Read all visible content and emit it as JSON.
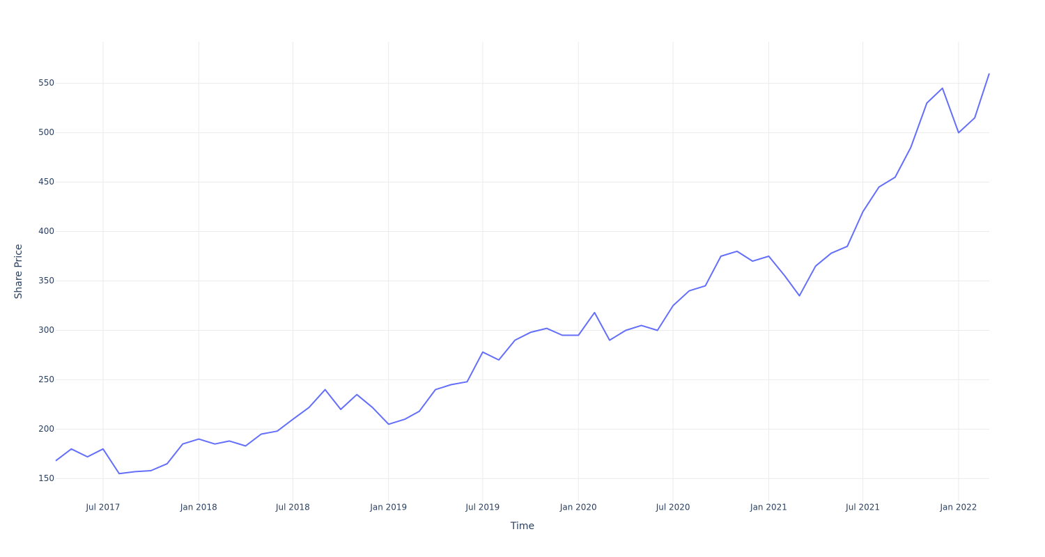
{
  "chart_data": {
    "type": "line",
    "x_title": "Time",
    "y_title": "Share Price",
    "x": [
      "2017-04",
      "2017-05",
      "2017-06",
      "2017-07",
      "2017-08",
      "2017-09",
      "2017-10",
      "2017-11",
      "2017-12",
      "2018-01",
      "2018-02",
      "2018-03",
      "2018-04",
      "2018-05",
      "2018-06",
      "2018-07",
      "2018-08",
      "2018-09",
      "2018-10",
      "2018-11",
      "2018-12",
      "2019-01",
      "2019-02",
      "2019-03",
      "2019-04",
      "2019-05",
      "2019-06",
      "2019-07",
      "2019-08",
      "2019-09",
      "2019-10",
      "2019-11",
      "2019-12",
      "2020-01",
      "2020-02",
      "2020-03",
      "2020-04",
      "2020-05",
      "2020-06",
      "2020-07",
      "2020-08",
      "2020-09",
      "2020-10",
      "2020-11",
      "2020-12",
      "2021-01",
      "2021-02",
      "2021-03",
      "2021-04",
      "2021-05",
      "2021-06",
      "2021-07",
      "2021-08",
      "2021-09",
      "2021-10",
      "2021-11",
      "2021-12",
      "2022-01",
      "2022-02",
      "2022-03"
    ],
    "series": [
      {
        "name": "Share Price",
        "color": "#636efa",
        "values": [
          168,
          180,
          172,
          180,
          155,
          157,
          158,
          165,
          185,
          190,
          185,
          188,
          183,
          195,
          198,
          210,
          222,
          240,
          220,
          235,
          222,
          205,
          210,
          218,
          240,
          245,
          248,
          278,
          270,
          290,
          298,
          302,
          295,
          295,
          318,
          290,
          300,
          305,
          300,
          325,
          340,
          345,
          375,
          380,
          370,
          375,
          355,
          335,
          365,
          378,
          385,
          420,
          445,
          455,
          485,
          530,
          545,
          500,
          515,
          560
        ]
      }
    ],
    "xlim": [
      "2017-04",
      "2022-03"
    ],
    "xticks": [
      {
        "value": "2017-07",
        "label": "Jul 2017"
      },
      {
        "value": "2018-01",
        "label": "Jan 2018"
      },
      {
        "value": "2018-07",
        "label": "Jul 2018"
      },
      {
        "value": "2019-01",
        "label": "Jan 2019"
      },
      {
        "value": "2019-07",
        "label": "Jul 2019"
      },
      {
        "value": "2020-01",
        "label": "Jan 2020"
      },
      {
        "value": "2020-07",
        "label": "Jul 2020"
      },
      {
        "value": "2021-01",
        "label": "Jan 2021"
      },
      {
        "value": "2021-07",
        "label": "Jul 2021"
      },
      {
        "value": "2022-01",
        "label": "Jan 2022"
      }
    ],
    "ylim": [
      127,
      592
    ],
    "yticks": [
      150,
      200,
      250,
      300,
      350,
      400,
      450,
      500,
      550
    ],
    "grid": true
  }
}
